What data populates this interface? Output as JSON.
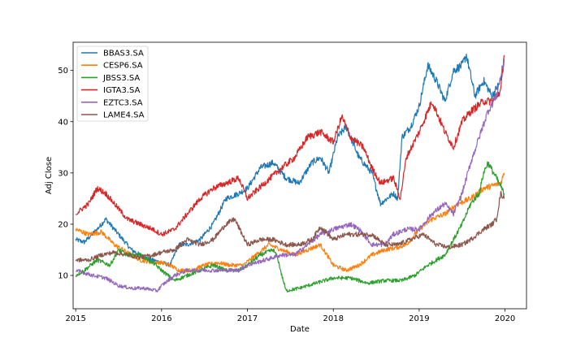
{
  "chart_data": {
    "type": "line",
    "title": "",
    "xlabel": "Date",
    "ylabel": "Adj Close",
    "xlim": [
      2014.97,
      2020.25
    ],
    "ylim": [
      3.5,
      55.5
    ],
    "xticks": [
      2015,
      2016,
      2017,
      2018,
      2019,
      2020
    ],
    "xtick_labels": [
      "2015",
      "2016",
      "2017",
      "2018",
      "2019",
      "2020"
    ],
    "yticks": [
      10,
      20,
      30,
      40,
      50
    ],
    "ytick_labels": [
      "10",
      "20",
      "30",
      "40",
      "50"
    ],
    "grid": false,
    "legend_position": "upper-left",
    "series": [
      {
        "name": "BBAS3.SA",
        "color": "#1f77b4",
        "x": [
          2015.0,
          2015.1,
          2015.25,
          2015.35,
          2015.5,
          2015.65,
          2015.8,
          2015.9,
          2016.0,
          2016.1,
          2016.2,
          2016.3,
          2016.45,
          2016.6,
          2016.75,
          2016.9,
          2017.0,
          2017.15,
          2017.3,
          2017.45,
          2017.6,
          2017.75,
          2017.85,
          2017.95,
          2018.05,
          2018.15,
          2018.3,
          2018.45,
          2018.55,
          2018.7,
          2018.75,
          2018.8,
          2018.85,
          2018.9,
          2019.0,
          2019.1,
          2019.2,
          2019.3,
          2019.4,
          2019.5,
          2019.55,
          2019.65,
          2019.75,
          2019.85,
          2019.95,
          2019.99
        ],
        "y": [
          17,
          16.5,
          19,
          21,
          18,
          15,
          13.5,
          13,
          12.5,
          12,
          16,
          16,
          17,
          20,
          25,
          26,
          27,
          31,
          32,
          29,
          28,
          32,
          33,
          30,
          37,
          39,
          33,
          30,
          24,
          26,
          25,
          37,
          38,
          39,
          43,
          51,
          48,
          44,
          50,
          51,
          53,
          45,
          48,
          45,
          48,
          52
        ]
      },
      {
        "name": "CESP6.SA",
        "color": "#ff7f0e",
        "x": [
          2015.0,
          2015.15,
          2015.3,
          2015.45,
          2015.6,
          2015.75,
          2015.9,
          2016.0,
          2016.1,
          2016.2,
          2016.35,
          2016.5,
          2016.65,
          2016.8,
          2016.95,
          2017.1,
          2017.25,
          2017.4,
          2017.55,
          2017.7,
          2017.85,
          2018.0,
          2018.15,
          2018.3,
          2018.45,
          2018.6,
          2018.75,
          2018.85,
          2019.0,
          2019.15,
          2019.3,
          2019.45,
          2019.6,
          2019.75,
          2019.85,
          2019.95,
          2019.99
        ],
        "y": [
          19,
          18,
          18.5,
          16,
          14.5,
          13,
          12.5,
          12.5,
          12,
          11,
          11,
          12,
          12.5,
          12,
          12,
          14,
          16,
          15,
          14,
          15,
          16,
          12,
          11,
          12,
          14,
          15,
          15.5,
          16,
          19,
          21,
          22,
          24,
          25,
          27,
          27.5,
          28,
          30
        ]
      },
      {
        "name": "JBSS3.SA",
        "color": "#2ca02c",
        "x": [
          2015.0,
          2015.1,
          2015.25,
          2015.4,
          2015.5,
          2015.6,
          2015.75,
          2015.9,
          2016.0,
          2016.15,
          2016.3,
          2016.45,
          2016.6,
          2016.75,
          2016.9,
          2017.0,
          2017.15,
          2017.3,
          2017.35,
          2017.4,
          2017.45,
          2017.6,
          2017.8,
          2018.0,
          2018.2,
          2018.4,
          2018.6,
          2018.8,
          2018.95,
          2019.1,
          2019.3,
          2019.5,
          2019.6,
          2019.7,
          2019.75,
          2019.8,
          2019.9,
          2019.99
        ],
        "y": [
          10,
          11,
          13,
          12,
          15,
          14,
          14,
          12.5,
          11,
          9,
          10,
          11,
          12,
          11,
          11,
          12,
          14,
          15,
          13.5,
          10,
          7,
          7.5,
          8.5,
          9.5,
          9.5,
          8.5,
          9,
          9,
          10,
          12,
          14,
          20,
          24,
          26,
          30,
          32,
          29,
          26
        ]
      },
      {
        "name": "IGTA3.SA",
        "color": "#d62728",
        "x": [
          2015.0,
          2015.15,
          2015.25,
          2015.35,
          2015.45,
          2015.6,
          2015.75,
          2015.9,
          2016.0,
          2016.15,
          2016.3,
          2016.45,
          2016.6,
          2016.75,
          2016.9,
          2017.0,
          2017.2,
          2017.4,
          2017.55,
          2017.7,
          2017.85,
          2018.0,
          2018.1,
          2018.2,
          2018.35,
          2018.45,
          2018.55,
          2018.7,
          2018.78,
          2018.85,
          2019.0,
          2019.15,
          2019.3,
          2019.4,
          2019.5,
          2019.6,
          2019.75,
          2019.85,
          2019.95,
          2019.99
        ],
        "y": [
          22,
          24,
          27,
          26,
          24,
          21,
          20,
          19,
          18,
          19,
          22,
          25,
          27,
          28,
          29,
          25,
          28,
          31,
          33,
          37,
          38,
          36,
          41,
          37,
          35,
          31,
          28,
          29,
          25,
          33,
          38,
          44,
          38,
          35,
          40,
          42,
          44,
          44,
          46,
          53
        ]
      },
      {
        "name": "EZTC3.SA",
        "color": "#9467bd",
        "x": [
          2015.0,
          2015.1,
          2015.2,
          2015.35,
          2015.5,
          2015.65,
          2015.8,
          2015.95,
          2016.0,
          2016.15,
          2016.3,
          2016.5,
          2016.7,
          2016.9,
          2017.0,
          2017.2,
          2017.4,
          2017.55,
          2017.7,
          2017.85,
          2018.0,
          2018.2,
          2018.3,
          2018.45,
          2018.6,
          2018.7,
          2018.85,
          2019.0,
          2019.15,
          2019.3,
          2019.4,
          2019.5,
          2019.6,
          2019.7,
          2019.8,
          2019.9,
          2019.99
        ],
        "y": [
          11,
          10.5,
          10,
          9.5,
          8,
          7.5,
          7.5,
          7,
          8,
          10,
          11,
          11,
          11,
          11,
          12,
          13,
          14,
          14,
          16,
          18,
          19,
          20,
          19,
          16,
          16,
          18,
          19,
          19,
          22,
          24,
          22,
          26,
          32,
          37,
          42,
          45,
          52
        ]
      },
      {
        "name": "LAME4.SA",
        "color": "#8c564b",
        "x": [
          2015.0,
          2015.15,
          2015.3,
          2015.45,
          2015.6,
          2015.75,
          2015.9,
          2016.0,
          2016.15,
          2016.3,
          2016.45,
          2016.6,
          2016.75,
          2016.85,
          2017.0,
          2017.15,
          2017.3,
          2017.45,
          2017.6,
          2017.75,
          2017.85,
          2018.0,
          2018.15,
          2018.3,
          2018.45,
          2018.6,
          2018.75,
          2018.9,
          2019.05,
          2019.2,
          2019.35,
          2019.5,
          2019.6,
          2019.75,
          2019.85,
          2019.9,
          2019.95,
          2019.99
        ],
        "y": [
          13,
          13,
          14,
          14.5,
          14,
          13.5,
          14,
          14.5,
          15,
          17,
          16,
          17,
          20,
          21,
          16,
          17,
          17,
          16,
          16,
          17,
          19.5,
          17,
          18,
          18,
          18,
          16,
          16,
          17,
          18,
          16,
          15.5,
          16,
          17,
          19,
          20,
          21,
          26,
          25
        ]
      }
    ]
  }
}
